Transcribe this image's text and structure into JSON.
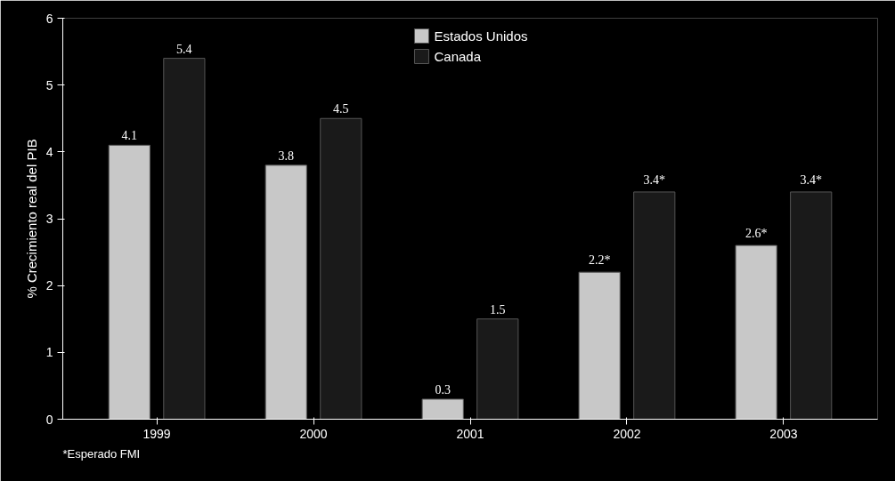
{
  "chart_data": {
    "type": "bar",
    "ylabel": "% Crecimiento real del PIB",
    "categories": [
      "1999",
      "2000",
      "2001",
      "2002",
      "2003"
    ],
    "series": [
      {
        "name": "Estados Unidos",
        "color": "#c8c8c8",
        "values": [
          4.1,
          3.8,
          0.3,
          2.2,
          2.6
        ],
        "value_labels": [
          "4.1",
          "3.8",
          "0.3",
          "2.2*",
          "2.6*"
        ]
      },
      {
        "name": "Canada",
        "color": "#1a1a1a",
        "values": [
          5.4,
          4.5,
          1.5,
          3.4,
          3.4
        ],
        "value_labels": [
          "5.4",
          "4.5",
          "1.5",
          "3.4*",
          "3.4*"
        ]
      }
    ],
    "ylim": [
      0,
      6
    ],
    "yticks": [
      0,
      1,
      2,
      3,
      4,
      5,
      6
    ],
    "grid": false,
    "legend": "top",
    "annotations": [
      "*Esperado FMI"
    ]
  }
}
